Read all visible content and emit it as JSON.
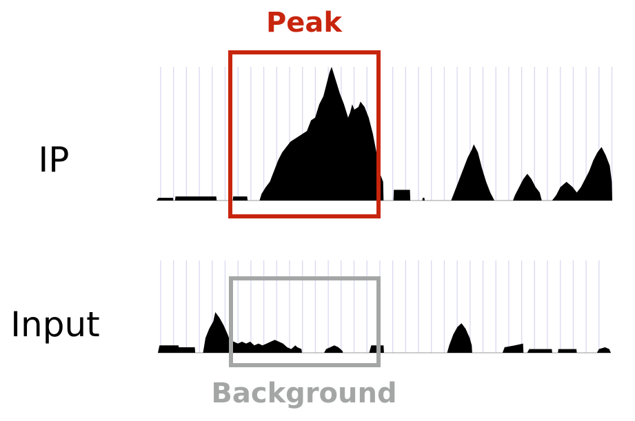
{
  "labels": {
    "peak": "Peak",
    "ip": "IP",
    "input": "Input",
    "background": "Background"
  },
  "colors": {
    "peak": "#c8250e",
    "background": "#a4a6a6",
    "signal": "#000000",
    "grid": "#d8d8f0",
    "baseline": "#9a9a9a"
  },
  "tracks": {
    "ip": {
      "name": "ip-signal-track",
      "ymax": 100,
      "profile": [
        [
          0,
          0
        ],
        [
          0.5,
          2
        ],
        [
          4.0,
          2
        ],
        [
          4.1,
          0
        ],
        [
          4.5,
          0
        ],
        [
          4.6,
          3
        ],
        [
          14.5,
          3
        ],
        [
          14.6,
          0
        ],
        [
          18.5,
          0
        ],
        [
          18.6,
          3
        ],
        [
          22.0,
          3
        ],
        [
          22.1,
          0
        ],
        [
          25.0,
          0
        ],
        [
          25.5,
          5
        ],
        [
          26.5,
          10
        ],
        [
          27.5,
          14
        ],
        [
          28.5,
          22
        ],
        [
          29.5,
          30
        ],
        [
          30.5,
          36
        ],
        [
          31.5,
          40
        ],
        [
          32.5,
          44
        ],
        [
          33.5,
          46
        ],
        [
          34.5,
          48
        ],
        [
          35.5,
          50
        ],
        [
          36.5,
          52
        ],
        [
          37.5,
          60
        ],
        [
          38.5,
          62
        ],
        [
          39.5,
          72
        ],
        [
          40.5,
          78
        ],
        [
          41.5,
          90
        ],
        [
          42.0,
          96
        ],
        [
          42.5,
          100
        ],
        [
          43.5,
          90
        ],
        [
          44.5,
          80
        ],
        [
          45.5,
          72
        ],
        [
          46.5,
          62
        ],
        [
          47.0,
          66
        ],
        [
          47.5,
          72
        ],
        [
          48.0,
          68
        ],
        [
          49.0,
          70
        ],
        [
          49.5,
          74
        ],
        [
          50.5,
          70
        ],
        [
          51.5,
          62
        ],
        [
          52.5,
          50
        ],
        [
          53.5,
          34
        ],
        [
          54.0,
          22
        ],
        [
          55.0,
          14
        ],
        [
          55.1,
          0
        ],
        [
          57.5,
          0
        ],
        [
          57.6,
          8
        ],
        [
          61.5,
          8
        ],
        [
          61.6,
          0
        ],
        [
          64.5,
          0
        ],
        [
          64.6,
          2
        ],
        [
          65.0,
          2
        ],
        [
          65.1,
          0
        ],
        [
          71.5,
          0
        ],
        [
          72.5,
          8
        ],
        [
          73.5,
          16
        ],
        [
          74.5,
          24
        ],
        [
          75.5,
          32
        ],
        [
          76.5,
          38
        ],
        [
          77.0,
          42
        ],
        [
          78.0,
          36
        ],
        [
          79.0,
          24
        ],
        [
          80.0,
          14
        ],
        [
          81.0,
          6
        ],
        [
          82.0,
          0
        ],
        [
          86.5,
          0
        ],
        [
          87.0,
          4
        ],
        [
          88.0,
          10
        ],
        [
          89.0,
          16
        ],
        [
          90.0,
          20
        ],
        [
          91.0,
          16
        ],
        [
          92.0,
          10
        ],
        [
          93.0,
          6
        ],
        [
          93.5,
          0
        ],
        [
          96.0,
          0
        ],
        [
          96.5,
          2
        ],
        [
          97.0,
          4
        ],
        [
          98.0,
          10
        ],
        [
          99.5,
          14
        ],
        [
          101.0,
          10
        ],
        [
          102.0,
          6
        ],
        [
          103.0,
          10
        ],
        [
          104.0,
          16
        ],
        [
          105.0,
          22
        ],
        [
          106.0,
          30
        ],
        [
          107.0,
          36
        ],
        [
          108.0,
          40
        ],
        [
          109.0,
          34
        ],
        [
          110.0,
          26
        ],
        [
          110.5,
          14
        ],
        [
          110.6,
          0
        ]
      ]
    },
    "input": {
      "name": "input-signal-track",
      "ymax": 100,
      "profile": [
        [
          0,
          0
        ],
        [
          0.4,
          8
        ],
        [
          5.0,
          8
        ],
        [
          5.1,
          6
        ],
        [
          9.0,
          6
        ],
        [
          9.1,
          0
        ],
        [
          11.0,
          0
        ],
        [
          11.6,
          16
        ],
        [
          12.5,
          26
        ],
        [
          13.5,
          34
        ],
        [
          14.0,
          44
        ],
        [
          15.0,
          38
        ],
        [
          16.0,
          30
        ],
        [
          17.0,
          20
        ],
        [
          17.5,
          14
        ],
        [
          18.5,
          12
        ],
        [
          19.5,
          10
        ],
        [
          20.5,
          12
        ],
        [
          21.5,
          10
        ],
        [
          22.5,
          12
        ],
        [
          23.5,
          8
        ],
        [
          24.5,
          10
        ],
        [
          25.5,
          8
        ],
        [
          26.5,
          10
        ],
        [
          27.5,
          12
        ],
        [
          28.5,
          14
        ],
        [
          29.5,
          12
        ],
        [
          30.5,
          10
        ],
        [
          31.5,
          6
        ],
        [
          32.5,
          4
        ],
        [
          33.5,
          8
        ],
        [
          34.0,
          6
        ],
        [
          35.0,
          4
        ],
        [
          35.1,
          0
        ],
        [
          40.5,
          0
        ],
        [
          41.0,
          4
        ],
        [
          42.0,
          6
        ],
        [
          43.0,
          8
        ],
        [
          44.0,
          6
        ],
        [
          45.0,
          2
        ],
        [
          45.1,
          0
        ],
        [
          51.5,
          0
        ],
        [
          52.0,
          8
        ],
        [
          55.0,
          8
        ],
        [
          55.1,
          0
        ],
        [
          70.5,
          0
        ],
        [
          71.0,
          8
        ],
        [
          72.0,
          20
        ],
        [
          73.0,
          28
        ],
        [
          74.0,
          32
        ],
        [
          75.0,
          26
        ],
        [
          76.0,
          16
        ],
        [
          76.5,
          8
        ],
        [
          76.6,
          0
        ],
        [
          84.0,
          0
        ],
        [
          84.5,
          6
        ],
        [
          87.0,
          8
        ],
        [
          89.0,
          10
        ],
        [
          89.1,
          0
        ],
        [
          90.0,
          0
        ],
        [
          90.5,
          4
        ],
        [
          96.0,
          4
        ],
        [
          96.1,
          0
        ],
        [
          97.5,
          0
        ],
        [
          97.6,
          4
        ],
        [
          102.0,
          4
        ],
        [
          102.1,
          0
        ],
        [
          107.0,
          0
        ],
        [
          107.5,
          4
        ],
        [
          109.0,
          6
        ],
        [
          110.0,
          4
        ],
        [
          110.4,
          0
        ]
      ]
    }
  }
}
